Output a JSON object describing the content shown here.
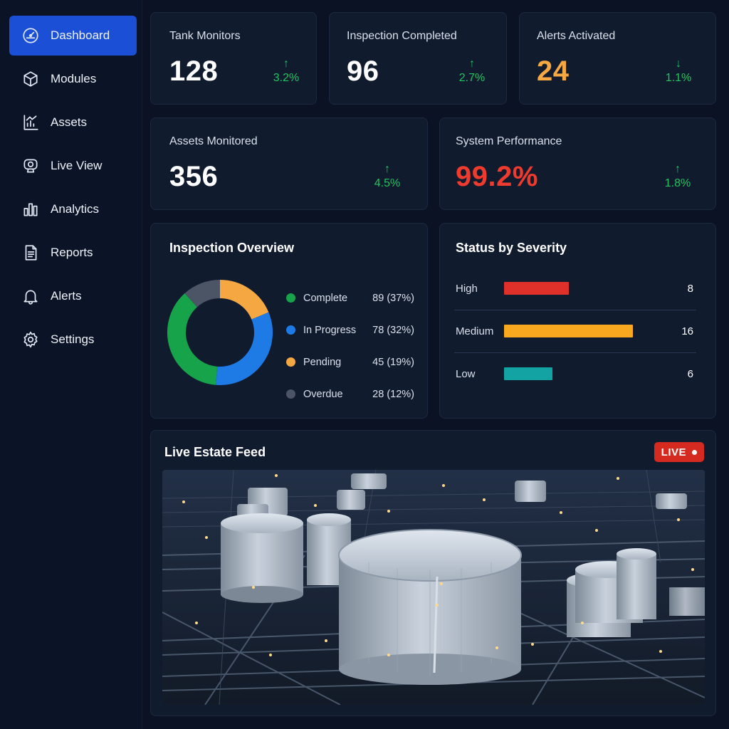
{
  "sidebar": {
    "items": [
      {
        "label": "Dashboard",
        "icon": "gauge-icon",
        "active": true
      },
      {
        "label": "Modules",
        "icon": "cube-icon"
      },
      {
        "label": "Assets",
        "icon": "asset-chart-icon"
      },
      {
        "label": "Live View",
        "icon": "camera-icon"
      },
      {
        "label": "Analytics",
        "icon": "bar-chart-icon"
      },
      {
        "label": "Reports",
        "icon": "document-icon"
      },
      {
        "label": "Alerts",
        "icon": "bell-icon"
      },
      {
        "label": "Settings",
        "icon": "gear-icon"
      }
    ]
  },
  "stats": {
    "tank_monitors": {
      "title": "Tank Monitors",
      "value": "128",
      "change": "3.2%",
      "direction": "up"
    },
    "inspection_completed": {
      "title": "Inspection Completed",
      "value": "96",
      "change": "2.7%",
      "direction": "up"
    },
    "alerts_activated": {
      "title": "Alerts Activated",
      "value": "24",
      "change": "1.1%",
      "direction": "down"
    },
    "assets_monitored": {
      "title": "Assets Monitored",
      "value": "356",
      "change": "4.5%",
      "direction": "up"
    },
    "system_performance": {
      "title": "System Performance",
      "value": "99.2%",
      "change": "1.8%",
      "direction": "up"
    }
  },
  "colors": {
    "accent": "#1a4fd6",
    "positive": "#22c55e",
    "alerts_value": "#f5a742",
    "performance_value": "#ef3b2d",
    "complete": "#16a34a",
    "in_progress": "#1e7be6",
    "pending": "#f5a742",
    "overdue": "#4b5566",
    "high": "#e0302a",
    "medium": "#f7a81f",
    "low": "#14a3a3",
    "live": "#d42a20"
  },
  "inspection_overview": {
    "title": "Inspection Overview",
    "legend": [
      {
        "label": "Complete",
        "value": "89 (37%)"
      },
      {
        "label": "In Progress",
        "value": "78 (32%)"
      },
      {
        "label": "Pending",
        "value": "45 (19%)"
      },
      {
        "label": "Overdue",
        "value": "28 (12%)"
      }
    ]
  },
  "severity": {
    "title": "Status by Severity",
    "rows": [
      {
        "label": "High",
        "count": "8"
      },
      {
        "label": "Medium",
        "count": "16"
      },
      {
        "label": "Low",
        "count": "6"
      }
    ]
  },
  "live_feed": {
    "title": "Live Estate Feed",
    "badge": "LIVE"
  },
  "chart_data": [
    {
      "type": "pie",
      "title": "Inspection Overview",
      "categories": [
        "Complete",
        "In Progress",
        "Pending",
        "Overdue"
      ],
      "values": [
        89,
        78,
        45,
        28
      ],
      "percent": [
        37,
        32,
        19,
        12
      ]
    },
    {
      "type": "bar",
      "title": "Status by Severity",
      "categories": [
        "High",
        "Medium",
        "Low"
      ],
      "values": [
        8,
        16,
        6
      ]
    }
  ]
}
